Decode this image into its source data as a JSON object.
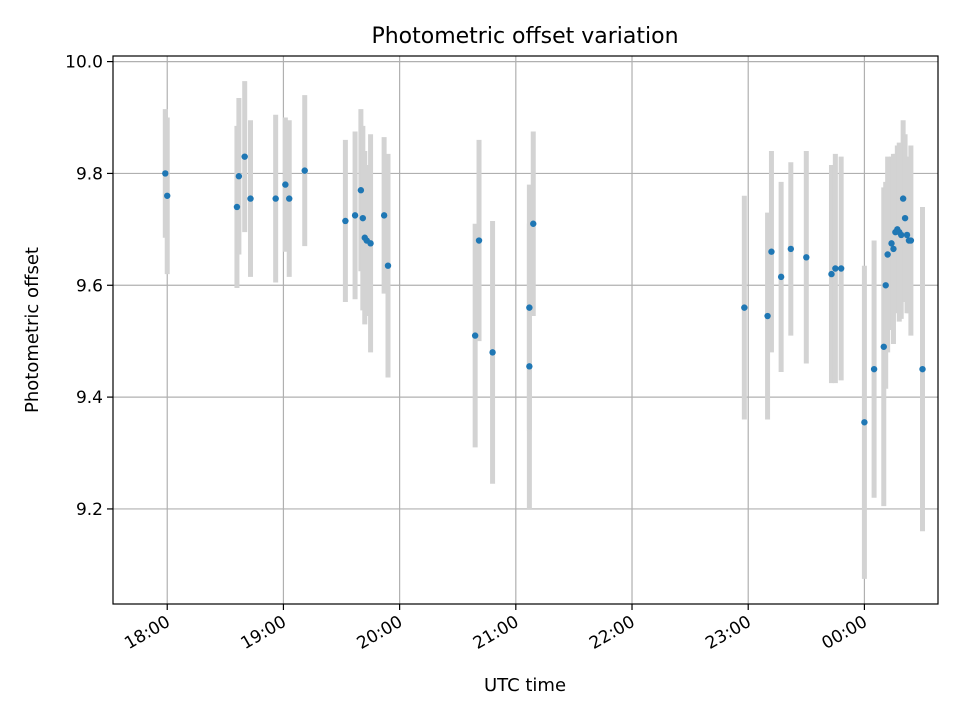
{
  "chart_data": {
    "type": "scatter",
    "title": "Photometric offset variation",
    "xlabel": "UTC time",
    "ylabel": "Photometric offset",
    "xlim": [
      "17:32",
      "00:38"
    ],
    "ylim": [
      9.03,
      10.01
    ],
    "x_ticks": [
      "18:00",
      "19:00",
      "20:00",
      "21:00",
      "22:00",
      "23:00",
      "00:00"
    ],
    "y_ticks": [
      "9.2",
      "9.4",
      "9.6",
      "9.8",
      "10.0"
    ],
    "grid": true,
    "colors": {
      "points": "#1f77b4",
      "errorbars": "#d3d3d3",
      "grid": "#b0b0b0"
    },
    "series": [
      {
        "x": [
          "17:59",
          "18:00",
          "18:36",
          "18:37",
          "18:40",
          "18:43",
          "18:56",
          "19:01",
          "19:03",
          "19:11",
          "19:32",
          "19:37",
          "19:40",
          "19:41",
          "19:42",
          "19:43",
          "19:45",
          "19:52",
          "19:54",
          "20:39",
          "20:41",
          "20:48",
          "21:07",
          "21:07",
          "21:09",
          "22:58",
          "23:10",
          "23:12",
          "23:17",
          "23:22",
          "23:30",
          "23:43",
          "23:45",
          "23:48",
          "24:00",
          "24:05",
          "24:10",
          "24:11",
          "24:12",
          "24:14",
          "24:15",
          "24:16",
          "24:17",
          "24:18",
          "24:19",
          "24:20",
          "24:21",
          "24:22",
          "24:23",
          "24:24",
          "24:30"
        ],
        "y": [
          9.8,
          9.76,
          9.74,
          9.795,
          9.83,
          9.755,
          9.755,
          9.78,
          9.755,
          9.805,
          9.715,
          9.725,
          9.77,
          9.72,
          9.685,
          9.68,
          9.675,
          9.725,
          9.635,
          9.51,
          9.68,
          9.48,
          9.455,
          9.56,
          9.71,
          9.56,
          9.545,
          9.66,
          9.615,
          9.665,
          9.65,
          9.62,
          9.63,
          9.63,
          9.355,
          9.45,
          9.49,
          9.6,
          9.655,
          9.675,
          9.665,
          9.695,
          9.7,
          9.695,
          9.69,
          9.755,
          9.72,
          9.69,
          9.68,
          9.68,
          9.45
        ],
        "yerr": [
          0.115,
          0.14,
          0.145,
          0.14,
          0.135,
          0.14,
          0.15,
          0.12,
          0.14,
          0.135,
          0.145,
          0.15,
          0.145,
          0.165,
          0.155,
          0.135,
          0.195,
          0.14,
          0.2,
          0.2,
          0.18,
          0.235,
          0.255,
          0.22,
          0.165,
          0.2,
          0.185,
          0.18,
          0.17,
          0.155,
          0.19,
          0.195,
          0.205,
          0.2,
          0.28,
          0.23,
          0.285,
          0.185,
          0.175,
          0.155,
          0.17,
          0.14,
          0.15,
          0.16,
          0.15,
          0.14,
          0.15,
          0.14,
          0.13,
          0.17,
          0.29
        ]
      }
    ]
  }
}
